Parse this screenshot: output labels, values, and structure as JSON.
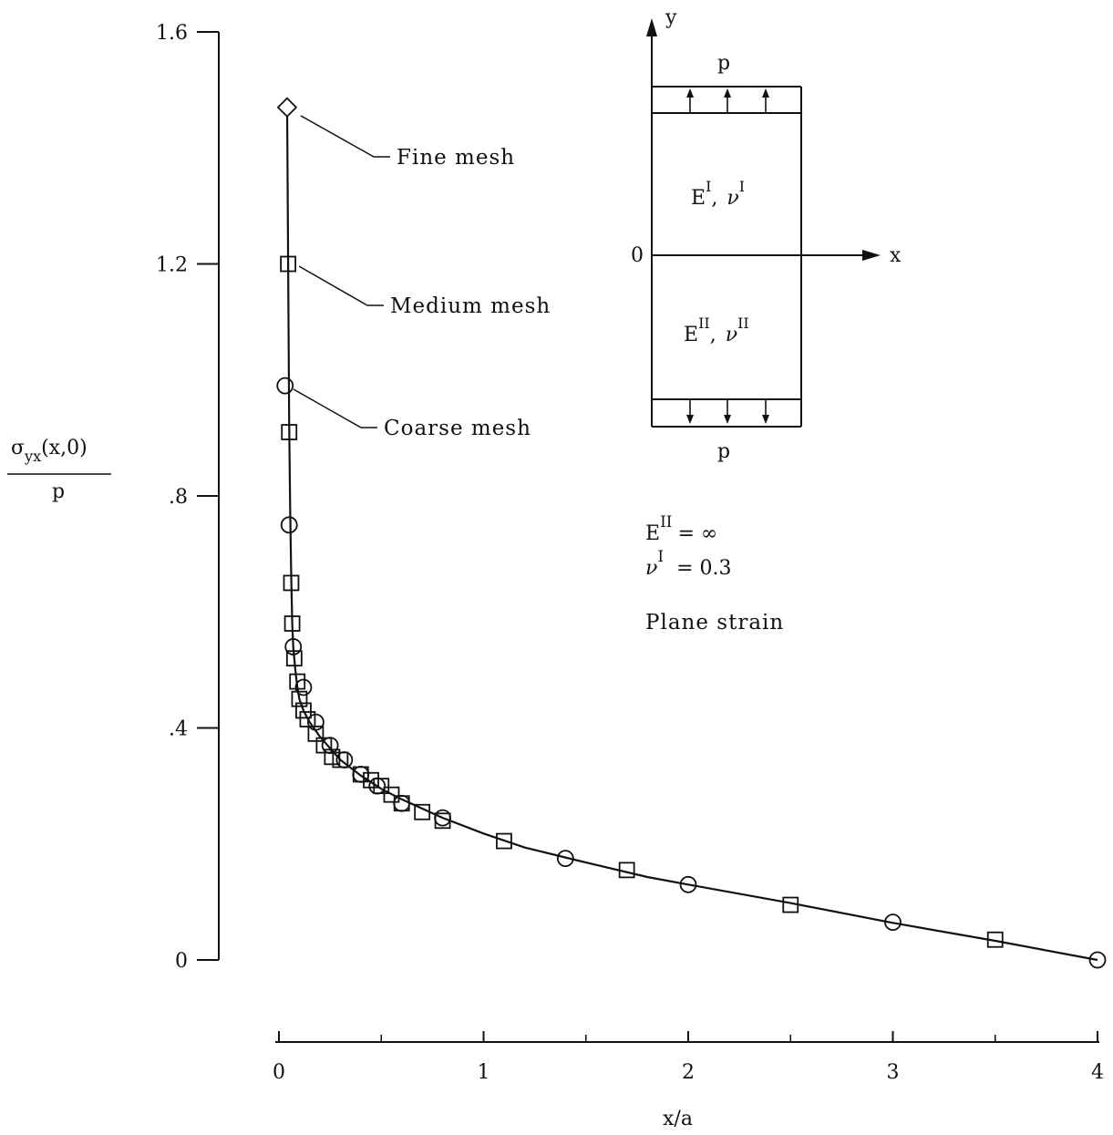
{
  "chart_data": {
    "type": "scatter",
    "xlabel": "x/a",
    "ylabel": {
      "numerator_base": "σ",
      "numerator_sub": "yx",
      "numerator_args": "(x,0)",
      "denominator": "p"
    },
    "xlim": [
      0,
      4
    ],
    "ylim": [
      0,
      1.6
    ],
    "x_ticks": [
      {
        "value": 0,
        "label": "0"
      },
      {
        "value": 1,
        "label": "1"
      },
      {
        "value": 2,
        "label": "2"
      },
      {
        "value": 3,
        "label": "3"
      },
      {
        "value": 4,
        "label": "4"
      }
    ],
    "x_minor_ticks": [
      0.5,
      1.5,
      2.5,
      3.5
    ],
    "y_ticks": [
      {
        "value": 0,
        "label": "0"
      },
      {
        "value": 0.4,
        "label": ".4"
      },
      {
        "value": 0.8,
        "label": ".8"
      },
      {
        "value": 1.2,
        "label": "1.2"
      },
      {
        "value": 1.6,
        "label": "1.6"
      }
    ],
    "curve": {
      "x": [
        0.04,
        0.045,
        0.05,
        0.055,
        0.06,
        0.065,
        0.07,
        0.08,
        0.09,
        0.1,
        0.12,
        0.15,
        0.2,
        0.25,
        0.3,
        0.4,
        0.5,
        0.6,
        0.8,
        1.0,
        1.2,
        1.5,
        1.8,
        2.0,
        2.5,
        3.0,
        3.5,
        4.0
      ],
      "y": [
        1.47,
        1.2,
        0.93,
        0.78,
        0.66,
        0.58,
        0.54,
        0.5,
        0.47,
        0.45,
        0.43,
        0.41,
        0.385,
        0.365,
        0.345,
        0.318,
        0.295,
        0.277,
        0.245,
        0.218,
        0.194,
        0.168,
        0.143,
        0.13,
        0.098,
        0.064,
        0.033,
        0.0
      ]
    },
    "series": [
      {
        "name": "Fine mesh",
        "marker": "diamond",
        "x": [
          0.04
        ],
        "y": [
          1.47
        ]
      },
      {
        "name": "Medium mesh",
        "marker": "square",
        "x": [
          0.045,
          0.05,
          0.06,
          0.065,
          0.075,
          0.09,
          0.1,
          0.12,
          0.14,
          0.18,
          0.22,
          0.26,
          0.3,
          0.4,
          0.45,
          0.5,
          0.55,
          0.6,
          0.7,
          0.8,
          1.1,
          1.7,
          2.5,
          3.5
        ],
        "y": [
          1.2,
          0.91,
          0.65,
          0.58,
          0.52,
          0.48,
          0.45,
          0.43,
          0.415,
          0.39,
          0.37,
          0.35,
          0.345,
          0.32,
          0.31,
          0.3,
          0.285,
          0.27,
          0.255,
          0.24,
          0.205,
          0.155,
          0.095,
          0.035
        ]
      },
      {
        "name": "Coarse mesh",
        "marker": "circle",
        "x": [
          0.03,
          0.05,
          0.07,
          0.12,
          0.18,
          0.25,
          0.32,
          0.4,
          0.48,
          0.6,
          0.8,
          1.4,
          2.0,
          3.0,
          4.0
        ],
        "y": [
          0.99,
          0.75,
          0.54,
          0.47,
          0.41,
          0.37,
          0.345,
          0.32,
          0.3,
          0.27,
          0.245,
          0.175,
          0.13,
          0.065,
          0.0
        ]
      }
    ]
  },
  "annotations": {
    "fine": "Fine mesh",
    "medium": "Medium mesh",
    "coarse": "Coarse mesh"
  },
  "inset": {
    "y_axis_label": "y",
    "x_axis_label": "x",
    "origin_label": "0",
    "top_load": "p",
    "bottom_load": "p",
    "upper_material": {
      "e": "E",
      "e_sup": "I",
      "sep": ",",
      "nu": "ν",
      "nu_sup": "I"
    },
    "lower_material": {
      "e": "E",
      "e_sup": "II",
      "sep": ",",
      "nu": "ν",
      "nu_sup": "II"
    }
  },
  "params": {
    "line1": {
      "sym": "E",
      "sup": "II",
      "rest": "= ∞"
    },
    "line2": {
      "sym": "ν",
      "sup": "I",
      "rest": "= 0.3"
    },
    "condition": "Plane strain"
  }
}
